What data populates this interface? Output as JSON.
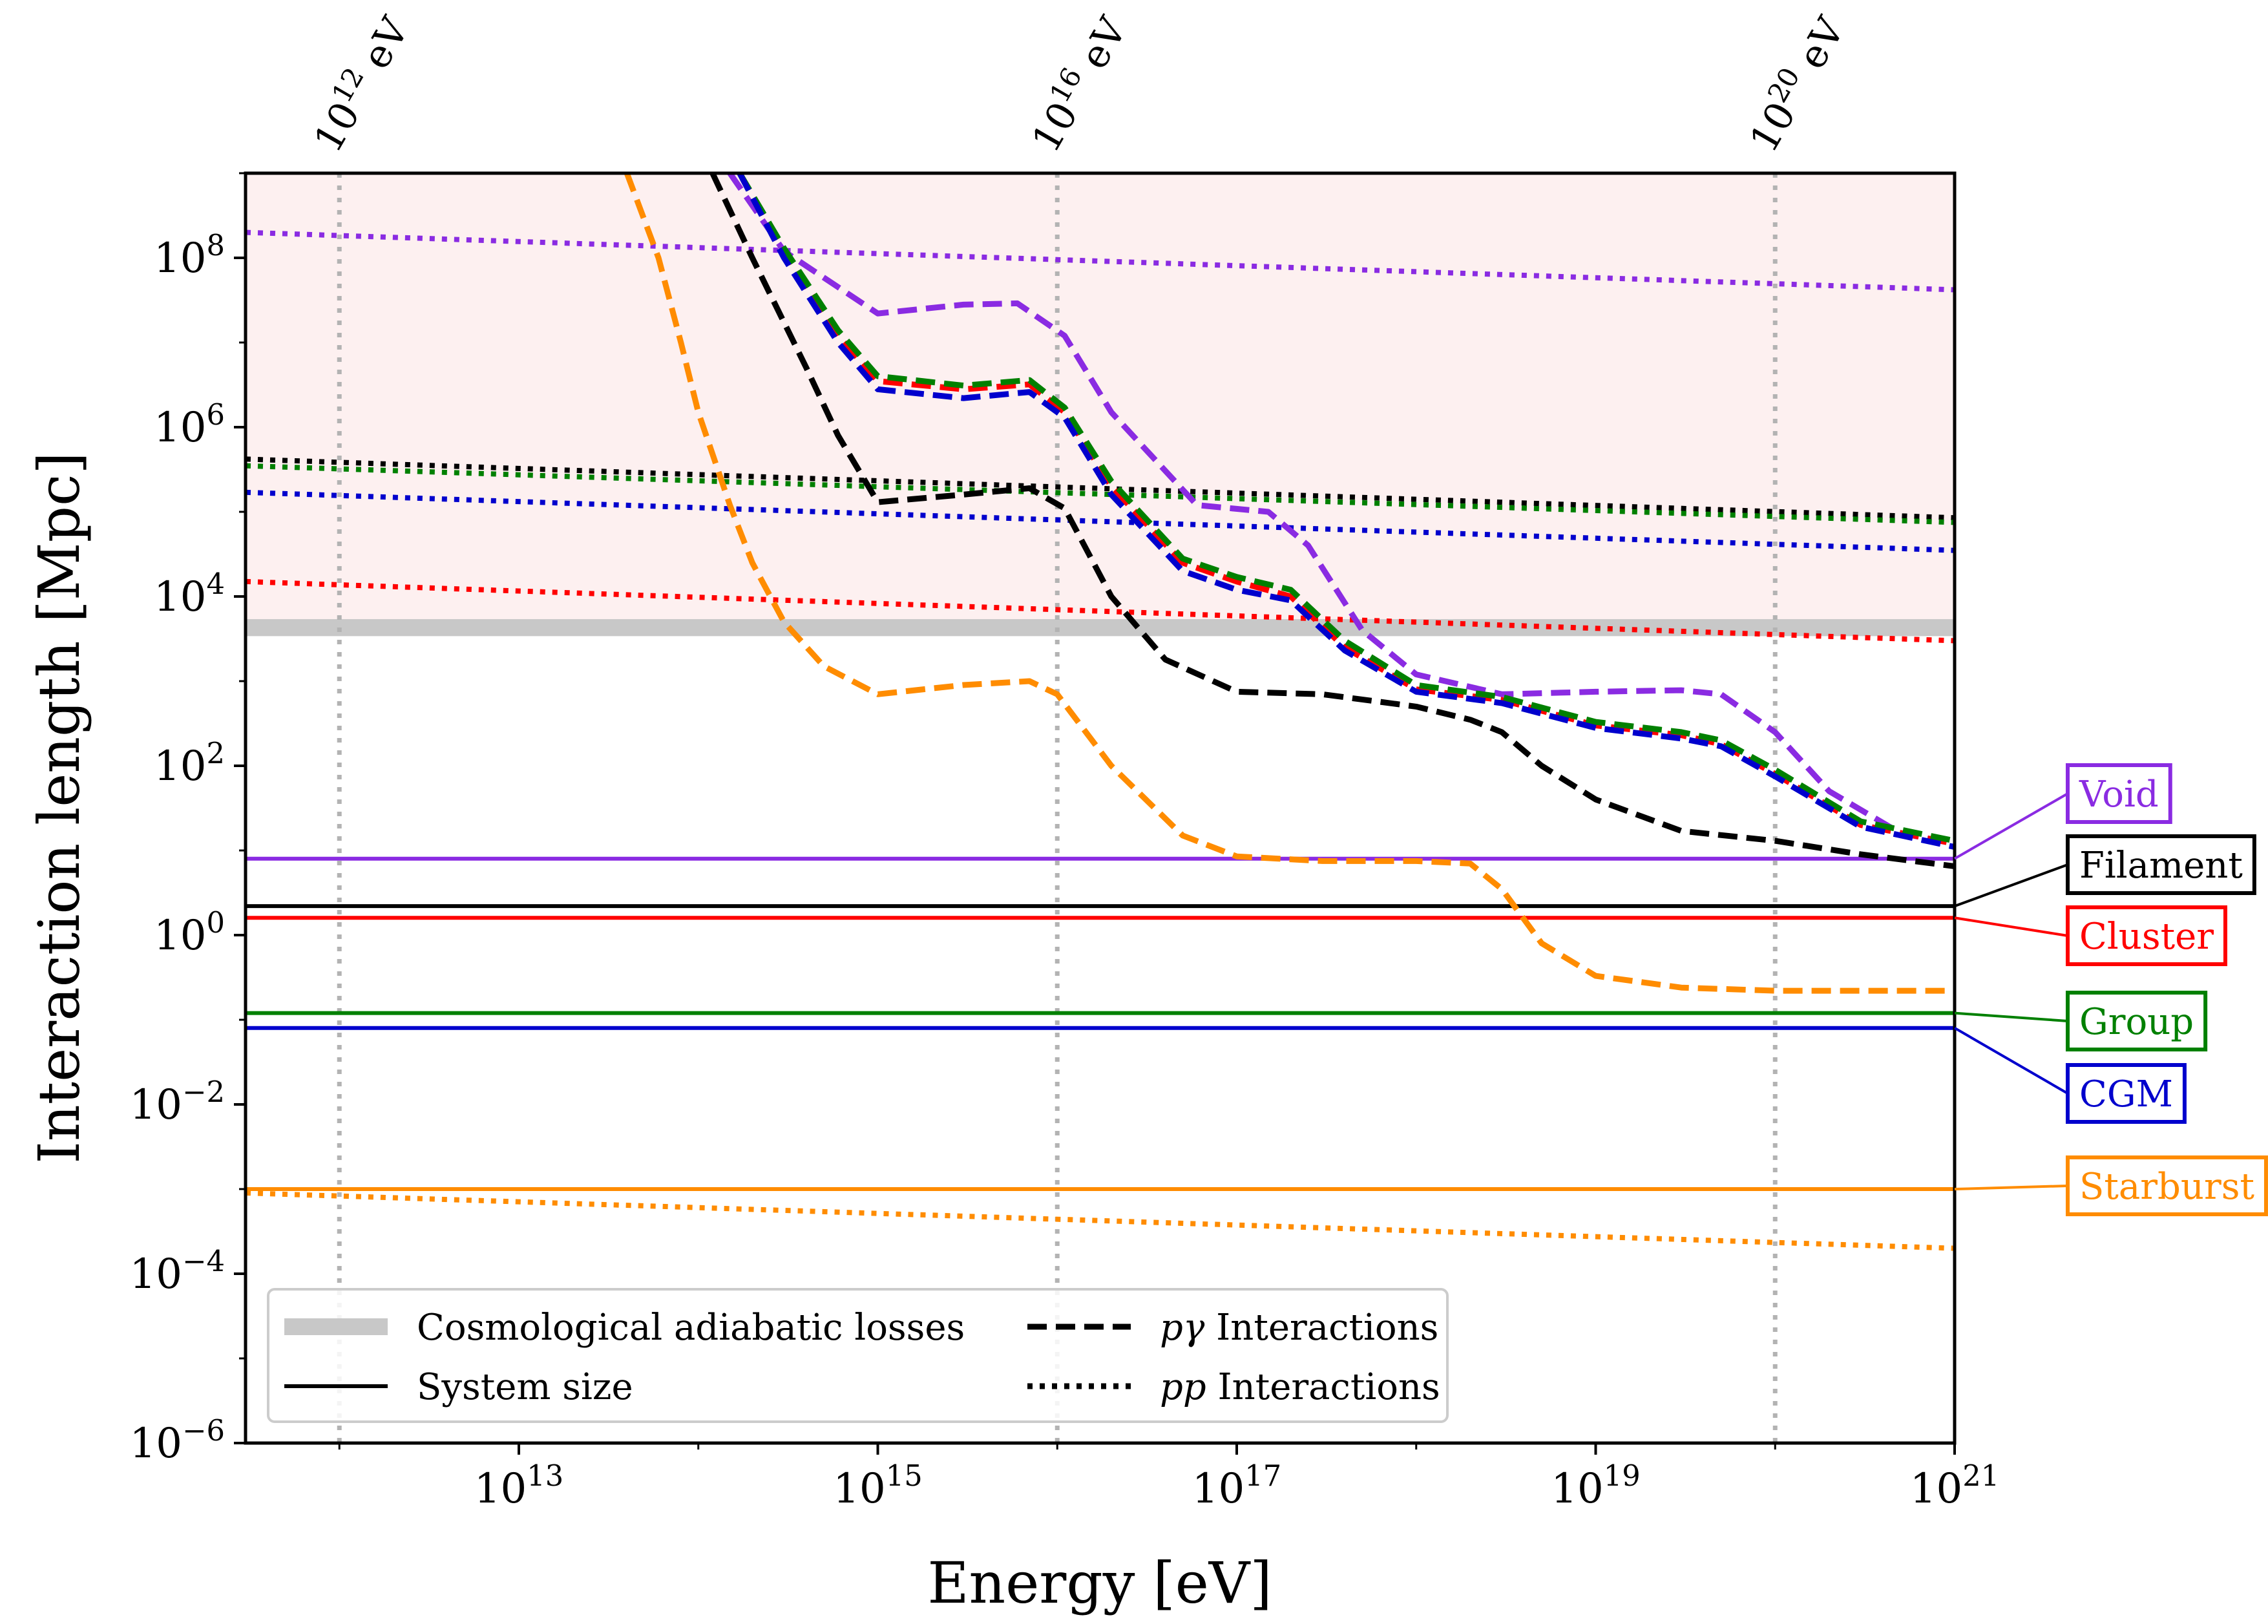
{
  "chart_data": {
    "type": "line",
    "xlabel": "Energy [eV]",
    "ylabel": "Interaction length [Mpc]",
    "x_scale": "log",
    "y_scale": "log",
    "xlim": [
      300000000000.0,
      1e+21
    ],
    "ylim": [
      1e-06,
      1000000000.0
    ],
    "x_ticks": [
      {
        "value": 10000000000000.0,
        "base": "10",
        "exp": "13"
      },
      {
        "value": 1000000000000000.0,
        "base": "10",
        "exp": "15"
      },
      {
        "value": 1e+17,
        "base": "10",
        "exp": "17"
      },
      {
        "value": 1e+19,
        "base": "10",
        "exp": "19"
      },
      {
        "value": 1e+21,
        "base": "10",
        "exp": "21"
      }
    ],
    "y_ticks": [
      {
        "value": 1e-06,
        "base": "10",
        "exp": "−6"
      },
      {
        "value": 0.0001,
        "base": "10",
        "exp": "−4"
      },
      {
        "value": 0.01,
        "base": "10",
        "exp": "−2"
      },
      {
        "value": 1.0,
        "base": "10",
        "exp": "0"
      },
      {
        "value": 100.0,
        "base": "10",
        "exp": "2"
      },
      {
        "value": 10000.0,
        "base": "10",
        "exp": "4"
      },
      {
        "value": 1000000.0,
        "base": "10",
        "exp": "6"
      },
      {
        "value": 100000000.0,
        "base": "10",
        "exp": "8"
      }
    ],
    "reference_energies": [
      {
        "value": 1000000000000.0,
        "base": "10",
        "exp": "12",
        "unit": "eV"
      },
      {
        "value": 1e+16,
        "base": "10",
        "exp": "16",
        "unit": "eV"
      },
      {
        "value": 1e+20,
        "base": "10",
        "exp": "20",
        "unit": "eV"
      }
    ],
    "shaded_region": {
      "from": 4500,
      "to": 1000000000.0,
      "color": "#fdf0f0"
    },
    "adiabatic_band": {
      "from": 3400,
      "to": 5400,
      "color": "#c8c8c8"
    },
    "legend": {
      "placement": "lower-left",
      "entries": [
        {
          "label": "Cosmological adiabatic losses",
          "style": "band"
        },
        {
          "label": "System size",
          "style": "solid"
        },
        {
          "label_pre": "",
          "label_italic": "pγ",
          "label_post": " Interactions",
          "style": "dashed"
        },
        {
          "label_pre": "",
          "label_italic": "pp",
          "label_post": " Interactions",
          "style": "dotted"
        }
      ]
    },
    "environments": [
      {
        "name": "Void",
        "color": "#8a2be2",
        "system_size": 8,
        "pp": [
          [
            300000000000.0,
            200000000.0
          ],
          [
            1e+21,
            42000000.0
          ]
        ],
        "pgamma": [
          [
            150000000000000.0,
            1000000000.0
          ],
          [
            300000000000000.0,
            120000000.0
          ],
          [
            1000000000000000.0,
            22000000.0
          ],
          [
            3000000000000000.0,
            28000000.0
          ],
          [
            6000000000000000.0,
            29000000.0
          ],
          [
            1.1e+16,
            12000000.0
          ],
          [
            2e+16,
            1500000.0
          ],
          [
            6e+16,
            120000.0
          ],
          [
            1.5e+17,
            100000.0
          ],
          [
            2.5e+17,
            40000.0
          ],
          [
            5e+17,
            4000.0
          ],
          [
            1e+18,
            1200.0
          ],
          [
            3e+18,
            700
          ],
          [
            1e+19,
            750
          ],
          [
            3e+19,
            780
          ],
          [
            5e+19,
            700
          ],
          [
            1e+20,
            250
          ],
          [
            2e+20,
            50
          ],
          [
            5e+20,
            16
          ],
          [
            1e+21,
            12
          ]
        ]
      },
      {
        "name": "Filament",
        "color": "#000000",
        "system_size": 2.2,
        "pp": [
          [
            300000000000.0,
            420000.0
          ],
          [
            1e+21,
            85000.0
          ]
        ],
        "pgamma": [
          [
            120000000000000.0,
            1000000000.0
          ],
          [
            200000000000000.0,
            100000000.0
          ],
          [
            400000000000000.0,
            5000000.0
          ],
          [
            600000000000000.0,
            800000.0
          ],
          [
            1000000000000000.0,
            130000.0
          ],
          [
            3000000000000000.0,
            160000.0
          ],
          [
            7000000000000000.0,
            190000.0
          ],
          [
            1.1e+16,
            110000.0
          ],
          [
            2e+16,
            10000.0
          ],
          [
            4e+16,
            1800.0
          ],
          [
            1e+17,
            750
          ],
          [
            3e+17,
            700
          ],
          [
            1e+18,
            500
          ],
          [
            2e+18,
            350
          ],
          [
            3e+18,
            250
          ],
          [
            5e+18,
            100
          ],
          [
            1e+19,
            40
          ],
          [
            3e+19,
            17
          ],
          [
            1e+20,
            13
          ],
          [
            3e+20,
            9
          ],
          [
            1e+21,
            6.5
          ]
        ]
      },
      {
        "name": "Cluster",
        "color": "#ff0000",
        "system_size": 1.6,
        "pp": [
          [
            300000000000.0,
            15000.0
          ],
          [
            1e+21,
            3000.0
          ]
        ],
        "pgamma": [
          [
            170000000000000.0,
            1000000000.0
          ],
          [
            300000000000000.0,
            120000000.0
          ],
          [
            600000000000000.0,
            12000000.0
          ],
          [
            1000000000000000.0,
            3500000.0
          ],
          [
            3000000000000000.0,
            2800000.0
          ],
          [
            7000000000000000.0,
            3200000.0
          ],
          [
            1.1e+16,
            1500000.0
          ],
          [
            2e+16,
            200000.0
          ],
          [
            5e+16,
            25000.0
          ],
          [
            1e+17,
            15000.0
          ],
          [
            2e+17,
            10000.0
          ],
          [
            4e+17,
            2500.0
          ],
          [
            1e+18,
            800
          ],
          [
            3e+18,
            600
          ],
          [
            1e+19,
            300
          ],
          [
            3e+19,
            230
          ],
          [
            5e+19,
            180
          ],
          [
            1e+20,
            80
          ],
          [
            3e+20,
            20
          ],
          [
            1e+21,
            12
          ]
        ]
      },
      {
        "name": "Group",
        "color": "#008000",
        "system_size": 0.12,
        "pp": [
          [
            300000000000.0,
            350000.0
          ],
          [
            1e+21,
            75000.0
          ]
        ],
        "pgamma": [
          [
            170000000000000.0,
            1000000000.0
          ],
          [
            300000000000000.0,
            130000000.0
          ],
          [
            600000000000000.0,
            14000000.0
          ],
          [
            1000000000000000.0,
            4000000.0
          ],
          [
            3000000000000000.0,
            3100000.0
          ],
          [
            7000000000000000.0,
            3600000.0
          ],
          [
            1.1e+16,
            1700000.0
          ],
          [
            2e+16,
            230000.0
          ],
          [
            5e+16,
            28000.0
          ],
          [
            1e+17,
            17000.0
          ],
          [
            2e+17,
            12000.0
          ],
          [
            4e+17,
            3000.0
          ],
          [
            1e+18,
            900
          ],
          [
            3e+18,
            650
          ],
          [
            1e+19,
            330
          ],
          [
            3e+19,
            250
          ],
          [
            5e+19,
            200
          ],
          [
            1e+20,
            90
          ],
          [
            3e+20,
            22
          ],
          [
            1e+21,
            13
          ]
        ]
      },
      {
        "name": "CGM",
        "color": "#0000cd",
        "system_size": 0.08,
        "pp": [
          [
            300000000000.0,
            170000.0
          ],
          [
            1e+21,
            35000.0
          ]
        ],
        "pgamma": [
          [
            170000000000000.0,
            1000000000.0
          ],
          [
            300000000000000.0,
            100000000.0
          ],
          [
            600000000000000.0,
            10000000.0
          ],
          [
            1000000000000000.0,
            2800000.0
          ],
          [
            3000000000000000.0,
            2200000.0
          ],
          [
            7000000000000000.0,
            2600000.0
          ],
          [
            1.1e+16,
            1300000.0
          ],
          [
            2e+16,
            160000.0
          ],
          [
            5e+16,
            20000.0
          ],
          [
            1e+17,
            12000.0
          ],
          [
            2e+17,
            9000.0
          ],
          [
            4e+17,
            2300.0
          ],
          [
            1e+18,
            750
          ],
          [
            3e+18,
            550
          ],
          [
            1e+19,
            280
          ],
          [
            3e+19,
            210
          ],
          [
            5e+19,
            170
          ],
          [
            1e+20,
            75
          ],
          [
            3e+20,
            19
          ],
          [
            1e+21,
            11
          ]
        ]
      },
      {
        "name": "Starburst",
        "color": "#ff8c00",
        "system_size": 0.001,
        "pp": [
          [
            300000000000.0,
            0.0009
          ],
          [
            1e+21,
            0.0002
          ]
        ],
        "pgamma": [
          [
            40000000000000.0,
            1000000000.0
          ],
          [
            60000000000000.0,
            100000000.0
          ],
          [
            80000000000000.0,
            10000000.0
          ],
          [
            100000000000000.0,
            1500000.0
          ],
          [
            150000000000000.0,
            120000.0
          ],
          [
            200000000000000.0,
            25000.0
          ],
          [
            300000000000000.0,
            5000.0
          ],
          [
            500000000000000.0,
            1500.0
          ],
          [
            1000000000000000.0,
            700
          ],
          [
            3000000000000000.0,
            900
          ],
          [
            7000000000000000.0,
            1000.0
          ],
          [
            1e+16,
            700
          ],
          [
            2e+16,
            100
          ],
          [
            5e+16,
            15
          ],
          [
            1e+17,
            8.5
          ],
          [
            3e+17,
            7.5
          ],
          [
            1e+18,
            7.5
          ],
          [
            2e+18,
            7
          ],
          [
            3e+18,
            3.5
          ],
          [
            5e+18,
            0.8
          ],
          [
            1e+19,
            0.33
          ],
          [
            3e+19,
            0.24
          ],
          [
            1e+20,
            0.22
          ],
          [
            1e+21,
            0.22
          ]
        ]
      }
    ]
  }
}
